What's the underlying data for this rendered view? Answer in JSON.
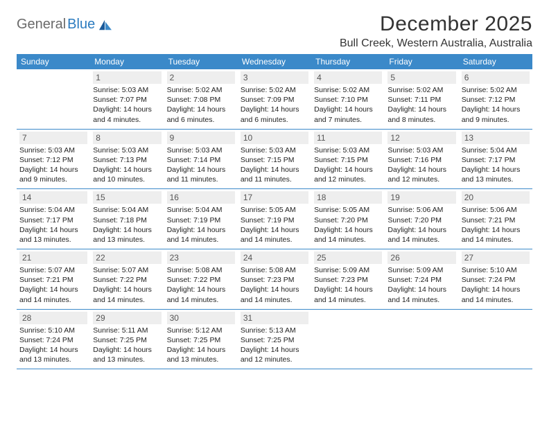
{
  "logo": {
    "text_a": "General",
    "text_b": "Blue"
  },
  "title": "December 2025",
  "location": "Bull Creek, Western Australia, Australia",
  "colors": {
    "header_bg": "#3b89c9",
    "header_text": "#ffffff",
    "daynum_bg": "#eeeeee",
    "border": "#3b89c9",
    "logo_gray": "#6a6a6a",
    "logo_blue": "#2b7bbf"
  },
  "day_headers": [
    "Sunday",
    "Monday",
    "Tuesday",
    "Wednesday",
    "Thursday",
    "Friday",
    "Saturday"
  ],
  "weeks": [
    [
      null,
      {
        "n": "1",
        "sr": "5:03 AM",
        "ss": "7:07 PM",
        "dl": "14 hours and 4 minutes."
      },
      {
        "n": "2",
        "sr": "5:02 AM",
        "ss": "7:08 PM",
        "dl": "14 hours and 6 minutes."
      },
      {
        "n": "3",
        "sr": "5:02 AM",
        "ss": "7:09 PM",
        "dl": "14 hours and 6 minutes."
      },
      {
        "n": "4",
        "sr": "5:02 AM",
        "ss": "7:10 PM",
        "dl": "14 hours and 7 minutes."
      },
      {
        "n": "5",
        "sr": "5:02 AM",
        "ss": "7:11 PM",
        "dl": "14 hours and 8 minutes."
      },
      {
        "n": "6",
        "sr": "5:02 AM",
        "ss": "7:12 PM",
        "dl": "14 hours and 9 minutes."
      }
    ],
    [
      {
        "n": "7",
        "sr": "5:03 AM",
        "ss": "7:12 PM",
        "dl": "14 hours and 9 minutes."
      },
      {
        "n": "8",
        "sr": "5:03 AM",
        "ss": "7:13 PM",
        "dl": "14 hours and 10 minutes."
      },
      {
        "n": "9",
        "sr": "5:03 AM",
        "ss": "7:14 PM",
        "dl": "14 hours and 11 minutes."
      },
      {
        "n": "10",
        "sr": "5:03 AM",
        "ss": "7:15 PM",
        "dl": "14 hours and 11 minutes."
      },
      {
        "n": "11",
        "sr": "5:03 AM",
        "ss": "7:15 PM",
        "dl": "14 hours and 12 minutes."
      },
      {
        "n": "12",
        "sr": "5:03 AM",
        "ss": "7:16 PM",
        "dl": "14 hours and 12 minutes."
      },
      {
        "n": "13",
        "sr": "5:04 AM",
        "ss": "7:17 PM",
        "dl": "14 hours and 13 minutes."
      }
    ],
    [
      {
        "n": "14",
        "sr": "5:04 AM",
        "ss": "7:17 PM",
        "dl": "14 hours and 13 minutes."
      },
      {
        "n": "15",
        "sr": "5:04 AM",
        "ss": "7:18 PM",
        "dl": "14 hours and 13 minutes."
      },
      {
        "n": "16",
        "sr": "5:04 AM",
        "ss": "7:19 PM",
        "dl": "14 hours and 14 minutes."
      },
      {
        "n": "17",
        "sr": "5:05 AM",
        "ss": "7:19 PM",
        "dl": "14 hours and 14 minutes."
      },
      {
        "n": "18",
        "sr": "5:05 AM",
        "ss": "7:20 PM",
        "dl": "14 hours and 14 minutes."
      },
      {
        "n": "19",
        "sr": "5:06 AM",
        "ss": "7:20 PM",
        "dl": "14 hours and 14 minutes."
      },
      {
        "n": "20",
        "sr": "5:06 AM",
        "ss": "7:21 PM",
        "dl": "14 hours and 14 minutes."
      }
    ],
    [
      {
        "n": "21",
        "sr": "5:07 AM",
        "ss": "7:21 PM",
        "dl": "14 hours and 14 minutes."
      },
      {
        "n": "22",
        "sr": "5:07 AM",
        "ss": "7:22 PM",
        "dl": "14 hours and 14 minutes."
      },
      {
        "n": "23",
        "sr": "5:08 AM",
        "ss": "7:22 PM",
        "dl": "14 hours and 14 minutes."
      },
      {
        "n": "24",
        "sr": "5:08 AM",
        "ss": "7:23 PM",
        "dl": "14 hours and 14 minutes."
      },
      {
        "n": "25",
        "sr": "5:09 AM",
        "ss": "7:23 PM",
        "dl": "14 hours and 14 minutes."
      },
      {
        "n": "26",
        "sr": "5:09 AM",
        "ss": "7:24 PM",
        "dl": "14 hours and 14 minutes."
      },
      {
        "n": "27",
        "sr": "5:10 AM",
        "ss": "7:24 PM",
        "dl": "14 hours and 14 minutes."
      }
    ],
    [
      {
        "n": "28",
        "sr": "5:10 AM",
        "ss": "7:24 PM",
        "dl": "14 hours and 13 minutes."
      },
      {
        "n": "29",
        "sr": "5:11 AM",
        "ss": "7:25 PM",
        "dl": "14 hours and 13 minutes."
      },
      {
        "n": "30",
        "sr": "5:12 AM",
        "ss": "7:25 PM",
        "dl": "14 hours and 13 minutes."
      },
      {
        "n": "31",
        "sr": "5:13 AM",
        "ss": "7:25 PM",
        "dl": "14 hours and 12 minutes."
      },
      null,
      null,
      null
    ]
  ],
  "labels": {
    "sunrise": "Sunrise: ",
    "sunset": "Sunset: ",
    "daylight": "Daylight: "
  }
}
